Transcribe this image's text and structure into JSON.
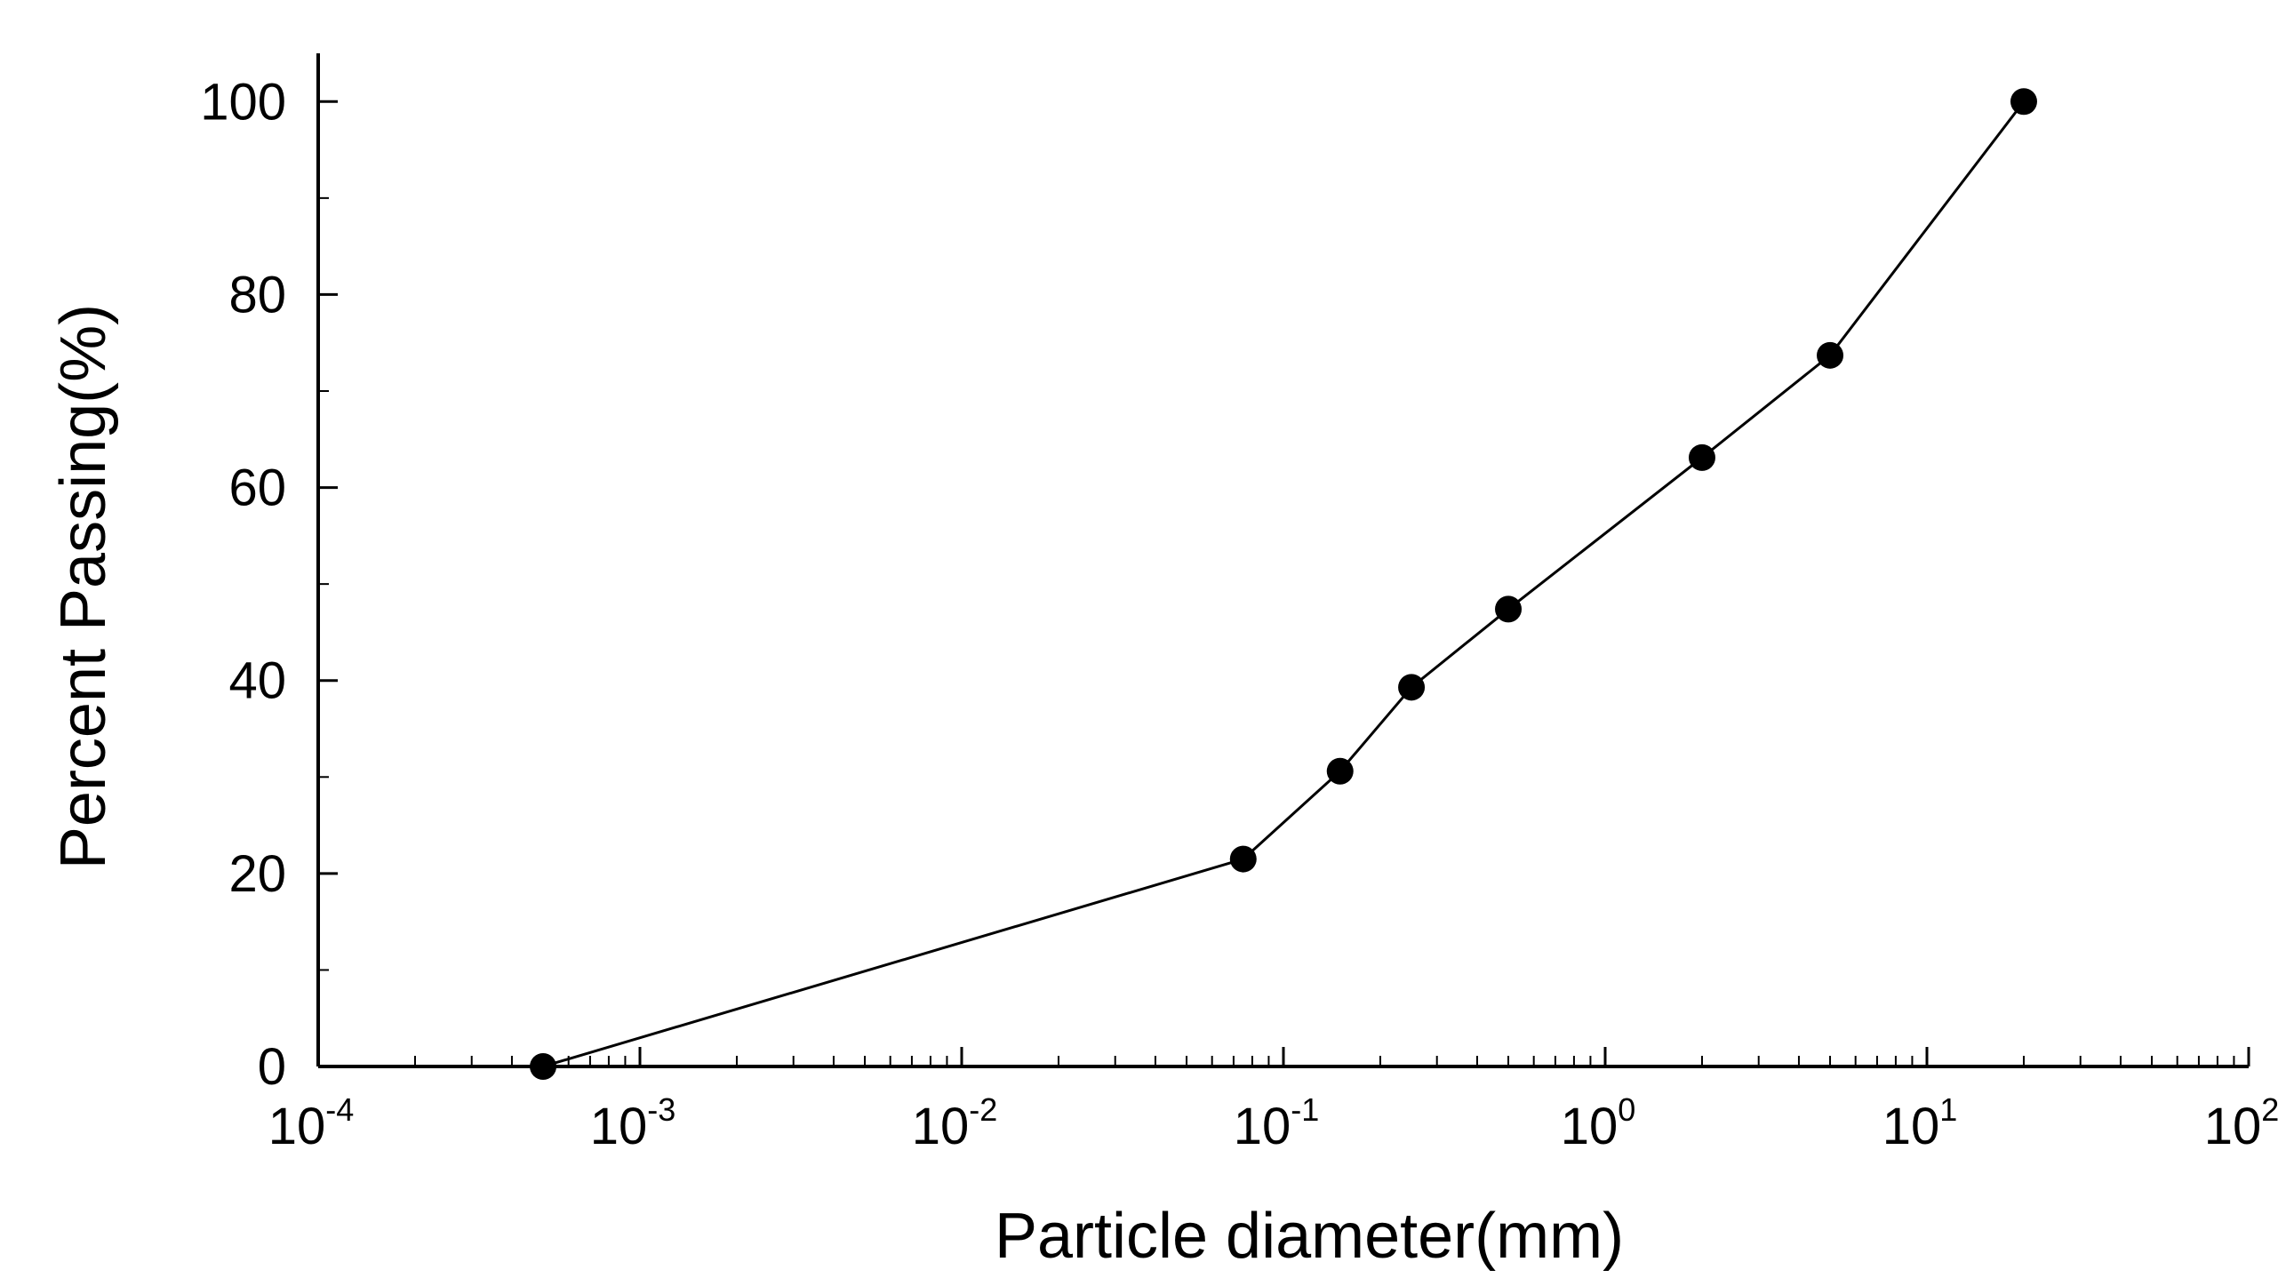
{
  "chart_data": {
    "type": "line",
    "title": "",
    "xlabel": "Particle diameter(mm)",
    "ylabel": "Percent Passing(%)",
    "xscale": "log",
    "xlim": [
      0.0001,
      100
    ],
    "ylim": [
      0,
      105
    ],
    "grid": false,
    "legend": "none",
    "x_tick_labels": [
      {
        "base": "10",
        "exp": "-4",
        "value": 0.0001
      },
      {
        "base": "10",
        "exp": "-3",
        "value": 0.001
      },
      {
        "base": "10",
        "exp": "-2",
        "value": 0.01
      },
      {
        "base": "10",
        "exp": "-1",
        "value": 0.1
      },
      {
        "base": "10",
        "exp": "0",
        "value": 1
      },
      {
        "base": "10",
        "exp": "1",
        "value": 10
      },
      {
        "base": "10",
        "exp": "2",
        "value": 100
      }
    ],
    "y_ticks": [
      0,
      20,
      40,
      60,
      80,
      100
    ],
    "y_tick_labels": [
      "0",
      "20",
      "40",
      "60",
      "80",
      "100"
    ],
    "series": [
      {
        "color": "#000000",
        "marker": "circle",
        "x": [
          0.0005,
          0.075,
          0.15,
          0.25,
          0.5,
          2,
          5,
          20
        ],
        "y": [
          0,
          21.5,
          30.6,
          39.3,
          47.4,
          63.1,
          73.7,
          100
        ]
      }
    ]
  }
}
